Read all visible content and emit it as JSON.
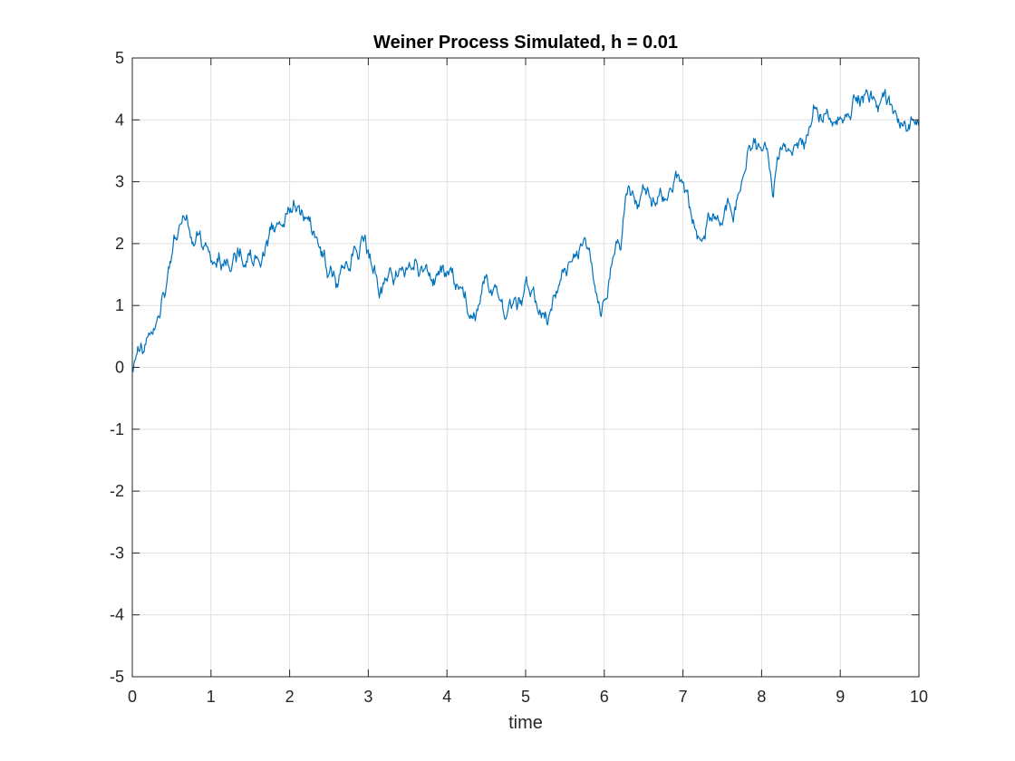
{
  "chart_data": {
    "type": "line",
    "title": "Weiner Process Simulated, h = 0.01",
    "xlabel": "time",
    "ylabel": "",
    "xlim": [
      0,
      10
    ],
    "ylim": [
      -5,
      5
    ],
    "xticks": [
      "0",
      "1",
      "2",
      "3",
      "4",
      "5",
      "6",
      "7",
      "8",
      "9",
      "10"
    ],
    "yticks": [
      "-5",
      "-4",
      "-3",
      "-2",
      "-1",
      "0",
      "1",
      "2",
      "3",
      "4",
      "5"
    ],
    "grid": true,
    "step": 0.01,
    "series": [
      {
        "color": "#0072bd",
        "x": [
          0,
          0.05,
          0.1,
          0.15,
          0.2,
          0.25,
          0.3,
          0.35,
          0.4,
          0.45,
          0.5,
          0.55,
          0.6,
          0.65,
          0.7,
          0.75,
          0.8,
          0.85,
          0.9,
          0.95,
          1.0,
          1.1,
          1.2,
          1.3,
          1.4,
          1.5,
          1.6,
          1.7,
          1.8,
          1.9,
          2.0,
          2.05,
          2.1,
          2.2,
          2.3,
          2.4,
          2.5,
          2.6,
          2.7,
          2.8,
          2.9,
          2.95,
          3.0,
          3.1,
          3.2,
          3.3,
          3.4,
          3.5,
          3.6,
          3.7,
          3.8,
          3.9,
          4.0,
          4.1,
          4.2,
          4.25,
          4.3,
          4.4,
          4.5,
          4.6,
          4.7,
          4.8,
          4.9,
          5.0,
          5.1,
          5.2,
          5.3,
          5.4,
          5.5,
          5.6,
          5.7,
          5.75,
          5.8,
          5.9,
          5.95,
          6.0,
          6.1,
          6.2,
          6.3,
          6.4,
          6.5,
          6.6,
          6.7,
          6.8,
          6.9,
          7.0,
          7.1,
          7.2,
          7.3,
          7.4,
          7.5,
          7.6,
          7.7,
          7.8,
          7.9,
          8.0,
          8.1,
          8.15,
          8.2,
          8.3,
          8.4,
          8.5,
          8.6,
          8.7,
          8.8,
          8.9,
          9.0,
          9.1,
          9.2,
          9.3,
          9.4,
          9.5,
          9.6,
          9.7,
          9.8,
          9.9,
          10.0
        ],
        "y": [
          0.0,
          0.2,
          0.3,
          0.25,
          0.5,
          0.55,
          0.7,
          0.8,
          1.2,
          1.5,
          1.8,
          2.1,
          2.3,
          2.45,
          2.4,
          2.1,
          2.0,
          2.15,
          1.9,
          1.95,
          1.7,
          1.85,
          1.75,
          1.85,
          1.7,
          1.9,
          1.75,
          2.0,
          2.2,
          2.3,
          2.5,
          2.7,
          2.6,
          2.4,
          2.2,
          1.8,
          1.5,
          1.35,
          1.6,
          1.8,
          2.0,
          2.1,
          1.9,
          1.5,
          1.35,
          1.5,
          1.6,
          1.6,
          1.75,
          1.55,
          1.4,
          1.5,
          1.55,
          1.35,
          1.3,
          1.0,
          0.85,
          1.0,
          1.5,
          1.3,
          1.1,
          1.1,
          1.0,
          1.4,
          1.3,
          0.8,
          0.85,
          1.2,
          1.6,
          1.75,
          2.0,
          2.1,
          1.9,
          1.2,
          0.85,
          1.1,
          1.7,
          1.9,
          2.9,
          2.7,
          2.9,
          2.6,
          2.8,
          2.7,
          3.1,
          3.0,
          2.5,
          2.1,
          2.3,
          2.4,
          2.3,
          2.6,
          2.8,
          3.2,
          3.7,
          3.5,
          3.2,
          2.75,
          3.4,
          3.6,
          3.5,
          3.7,
          3.85,
          4.2,
          4.1,
          3.9,
          4.05,
          4.1,
          4.3,
          4.4,
          4.35,
          4.25,
          4.3,
          4.15,
          3.9,
          4.05,
          3.9
        ]
      }
    ]
  }
}
